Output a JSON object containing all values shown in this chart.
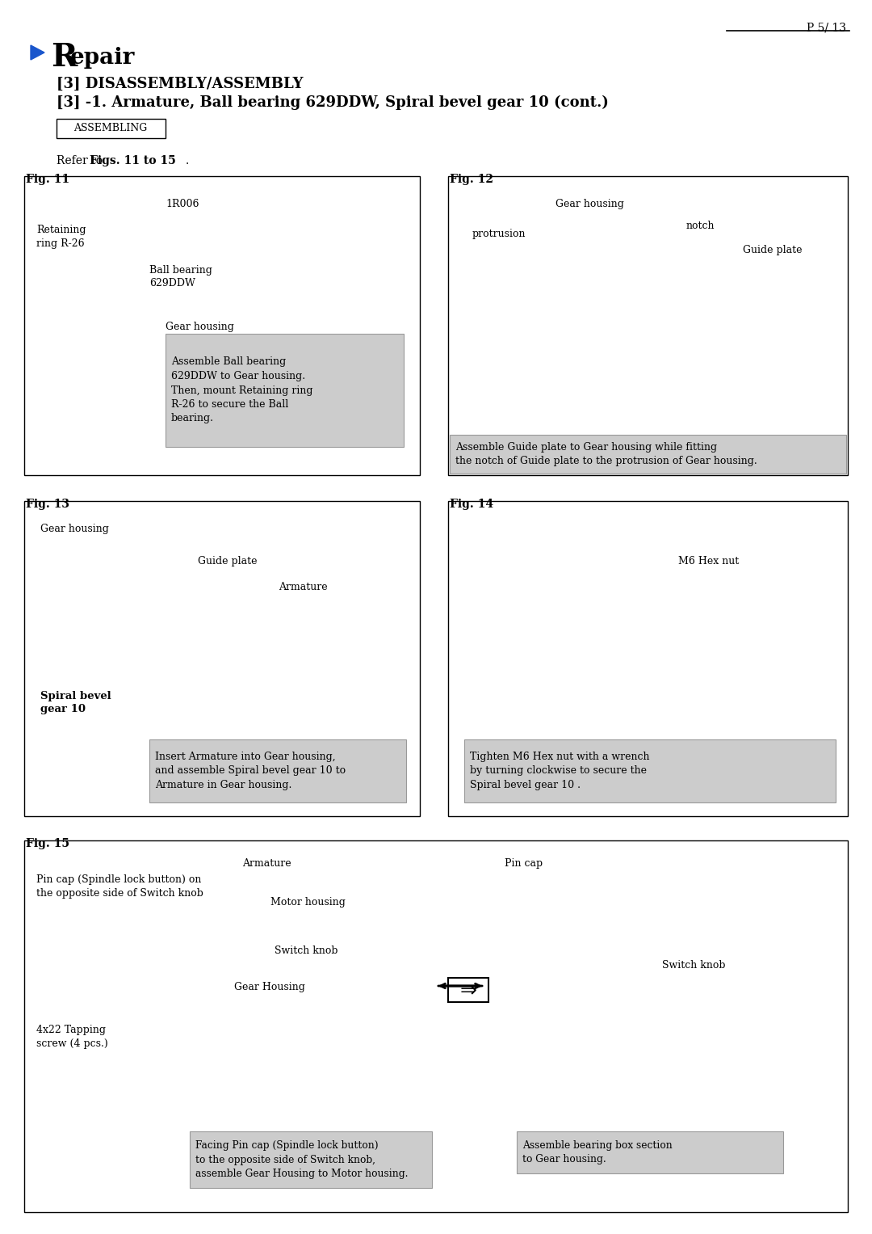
{
  "page_number": "P 5/ 13",
  "bg_color": "#ffffff",
  "title_R": "R",
  "title_rest": "epair",
  "subtitle1": "[3] DISASSEMBLY/ASSEMBLY",
  "subtitle2": "[3] -1. Armature, Ball bearing 629DDW, Spiral bevel gear 10 (cont.)",
  "assembling_label": "ASSEMBLING",
  "refer_plain": "Refer to ",
  "refer_bold": "Figs. 11 to 15",
  "refer_dot": ".",
  "fig11_label": "Fig. 11",
  "fig12_label": "Fig. 12",
  "fig13_label": "Fig. 13",
  "fig14_label": "Fig. 14",
  "fig15_label": "Fig. 15",
  "fig11_text_1R006": "1R006",
  "fig11_text_retaining": "Retaining\nring R-26",
  "fig11_text_ball": "Ball bearing\n629DDW",
  "fig11_text_gear": "Gear housing",
  "fig11_gray_text": "Assemble Ball bearing\n629DDW to Gear housing.\nThen, mount Retaining ring\nR-26 to secure the Ball\nbearing.",
  "fig12_text_gear": "Gear housing",
  "fig12_text_protrusion": "protrusion",
  "fig12_text_notch": "notch",
  "fig12_text_guide": "Guide plate",
  "fig12_gray_text": "Assemble Guide plate to Gear housing while fitting\nthe notch of Guide plate to the protrusion of Gear housing.",
  "fig13_text_gear": "Gear housing",
  "fig13_text_guide": "Guide plate",
  "fig13_text_armature": "Armature",
  "fig13_text_spiral": "Spiral bevel\ngear 10",
  "fig13_gray_text": "Insert Armature into Gear housing,\nand assemble Spiral bevel gear 10 to\nArmature in Gear housing.",
  "fig14_text_hex": "M6 Hex nut",
  "fig14_gray_text": "Tighten M6 Hex nut with a wrench\nby turning clockwise to secure the\nSpiral bevel gear 10 .",
  "fig15_text_armature": "Armature",
  "fig15_text_pin_cap_left": "Pin cap (Spindle lock button) on\nthe opposite side of Switch knob",
  "fig15_text_motor": "Motor housing",
  "fig15_text_switch": "Switch knob",
  "fig15_text_gear_housing": "Gear Housing",
  "fig15_text_screw": "4x22 Tapping\nscrew (4 pcs.)",
  "fig15_text_pin_cap_right": "Pin cap",
  "fig15_text_switch_right": "Switch knob",
  "fig15_gray_text1": "Facing Pin cap (Spindle lock button)\nto the opposite side of Switch knob,\nassemble Gear Housing to Motor housing.",
  "fig15_gray_text2": "Assemble bearing box section\nto Gear housing.",
  "arrow_color": "#1a56cc",
  "gray_fill": "#cccccc",
  "gray_edge": "#999999"
}
